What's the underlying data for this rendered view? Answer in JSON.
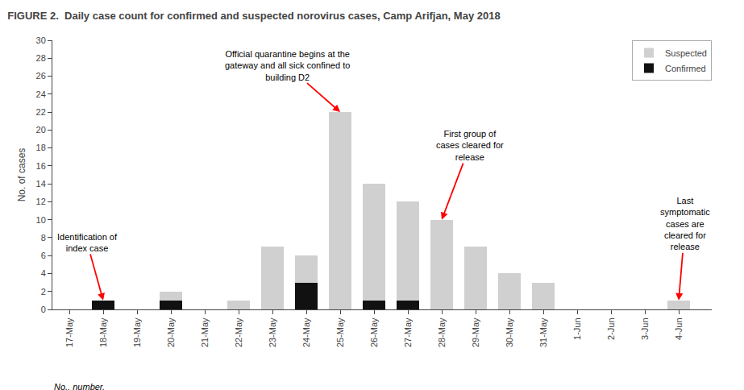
{
  "chart_data": {
    "type": "bar",
    "stacked": true,
    "title": "FIGURE 2.  Daily case count for confirmed and suspected norovirus cases, Camp Arifjan, May 2018",
    "ylabel": "No. of cases",
    "footnote": "No., number.",
    "categories": [
      "17-May",
      "18-May",
      "19-May",
      "20-May",
      "21-May",
      "22-May",
      "23-May",
      "24-May",
      "25-May",
      "26-May",
      "27-May",
      "28-May",
      "29-May",
      "30-May",
      "31-May",
      "1-Jun",
      "2-Jun",
      "3-Jun",
      "4-Jun"
    ],
    "series": [
      {
        "name": "Confirmed",
        "color": "#111111",
        "values": [
          0,
          1,
          0,
          1,
          0,
          0,
          0,
          3,
          0,
          1,
          1,
          0,
          0,
          0,
          0,
          0,
          0,
          0,
          0
        ]
      },
      {
        "name": "Suspected",
        "color": "#d0d0d0",
        "values": [
          0,
          0,
          0,
          1,
          0,
          1,
          7,
          3,
          22,
          13,
          11,
          10,
          7,
          4,
          3,
          0,
          0,
          0,
          1
        ]
      }
    ],
    "ylim": [
      0,
      30
    ],
    "yticks": [
      0,
      2,
      4,
      6,
      8,
      10,
      12,
      14,
      16,
      18,
      20,
      22,
      24,
      26,
      28,
      30
    ],
    "grid": false,
    "legend": "upper right",
    "annotations": [
      {
        "text": "Identification of\nindex case",
        "category": "18-May"
      },
      {
        "text": "Official quarantine begins at the\ngateway and all sick confined to\nbuilding D2",
        "category": "25-May"
      },
      {
        "text": "First group of\ncases cleared for\nrelease",
        "category": "28-May"
      },
      {
        "text": "Last\nsymptomatic\ncases are\ncleared for\nrelease",
        "category": "4-Jun"
      }
    ]
  }
}
